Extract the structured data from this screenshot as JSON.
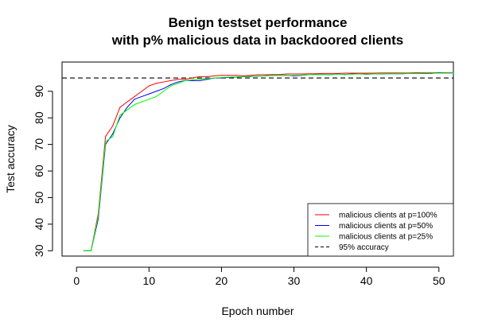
{
  "chart_data": {
    "type": "line",
    "title": "Benign testset performance",
    "subtitle": "with p% malicious data in backdoored clients",
    "xlabel": "Epoch number",
    "ylabel": "Test accuracy",
    "xlim": [
      -2,
      52
    ],
    "ylim": [
      28,
      101
    ],
    "x_ticks": [
      0,
      10,
      20,
      30,
      40,
      50
    ],
    "y_ticks": [
      30,
      40,
      50,
      60,
      70,
      80,
      90
    ],
    "grid": false,
    "legend_position": "bottom-right",
    "x": [
      1,
      2,
      3,
      4,
      5,
      6,
      7,
      8,
      9,
      10,
      11,
      12,
      13,
      14,
      15,
      16,
      17,
      18,
      19,
      20,
      21,
      22,
      23,
      24,
      25,
      26,
      27,
      28,
      29,
      30,
      31,
      32,
      33,
      34,
      35,
      36,
      37,
      38,
      39,
      40,
      41,
      42,
      43,
      44,
      45,
      46,
      47,
      48,
      49,
      50,
      51,
      52
    ],
    "series": [
      {
        "name": "malicious clients at p=100%",
        "color": "#ff0000",
        "values": [
          30,
          30,
          44,
          73,
          77,
          84,
          86,
          88,
          90,
          92,
          93,
          93.5,
          94,
          94.5,
          94.5,
          95,
          95.5,
          95.5,
          95.8,
          96,
          96,
          96,
          95.8,
          96,
          96.2,
          96.2,
          96.3,
          96.3,
          96.5,
          96.5,
          96.5,
          96.6,
          96.6,
          96.7,
          96.7,
          96.7,
          96.8,
          96.8,
          96.8,
          96.8,
          96.8,
          96.9,
          96.9,
          96.9,
          96.9,
          96.9,
          97,
          97,
          97,
          97,
          97,
          97
        ]
      },
      {
        "name": "malicious clients at p=50%",
        "color": "#0000ff",
        "values": [
          30,
          30,
          42,
          70,
          74,
          80,
          84,
          87,
          88,
          89,
          90,
          91,
          92.5,
          93.5,
          94,
          94,
          94,
          94.5,
          95,
          95,
          95.2,
          95.3,
          95.5,
          95.5,
          95.7,
          95.8,
          96,
          96,
          96,
          95.8,
          96,
          96.2,
          96.3,
          96.3,
          96.2,
          96.5,
          96.3,
          96.5,
          96.5,
          96.4,
          96.5,
          96.5,
          96.6,
          96.6,
          96.6,
          96.7,
          96.7,
          96.7,
          96.7,
          97,
          96.8,
          97
        ]
      },
      {
        "name": "malicious clients at p=25%",
        "color": "#00ff00",
        "values": [
          30,
          30,
          43,
          71,
          73,
          81,
          83,
          85,
          86,
          87,
          88,
          90,
          92,
          93,
          94,
          94.3,
          94.6,
          94.8,
          95,
          95.2,
          95.3,
          95.4,
          95.5,
          95.6,
          95.7,
          95.8,
          95.9,
          96,
          96,
          96,
          96.1,
          96.2,
          96.2,
          96.3,
          96.3,
          96.4,
          96.4,
          96.4,
          96.5,
          96.5,
          96.5,
          96.6,
          96.6,
          96.6,
          96.7,
          96.7,
          96.7,
          96.8,
          96.8,
          96.8,
          96.8,
          96.9
        ]
      }
    ],
    "reference_line": {
      "name": "95% accuracy",
      "value": 95,
      "style": "dashed",
      "color": "#000000"
    }
  }
}
